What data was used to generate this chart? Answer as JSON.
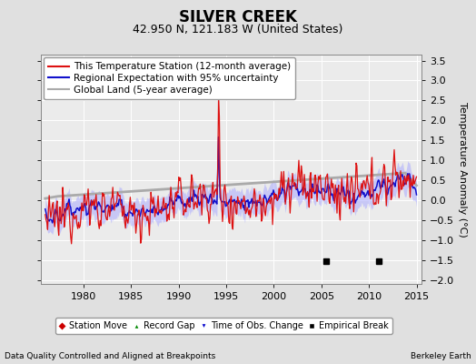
{
  "title": "SILVER CREEK",
  "subtitle": "42.950 N, 121.183 W (United States)",
  "ylabel": "Temperature Anomaly (°C)",
  "xlabel_left": "Data Quality Controlled and Aligned at Breakpoints",
  "xlabel_right": "Berkeley Earth",
  "xlim": [
    1975.5,
    2015.5
  ],
  "ylim": [
    -2.1,
    3.65
  ],
  "yticks": [
    -2,
    -1.5,
    -1,
    -0.5,
    0,
    0.5,
    1,
    1.5,
    2,
    2.5,
    3,
    3.5
  ],
  "xticks": [
    1980,
    1985,
    1990,
    1995,
    2000,
    2005,
    2010,
    2015
  ],
  "bg_color": "#e0e0e0",
  "plot_bg_color": "#ebebeb",
  "grid_color": "#ffffff",
  "empirical_breaks": [
    2005.5,
    2011.0
  ],
  "title_fontsize": 12,
  "subtitle_fontsize": 9,
  "legend_fontsize": 7.5,
  "tick_fontsize": 8,
  "ylabel_fontsize": 8,
  "red_color": "#dd1111",
  "blue_color": "#1111cc",
  "gray_color": "#aaaaaa",
  "band_color": "#aaaaff"
}
